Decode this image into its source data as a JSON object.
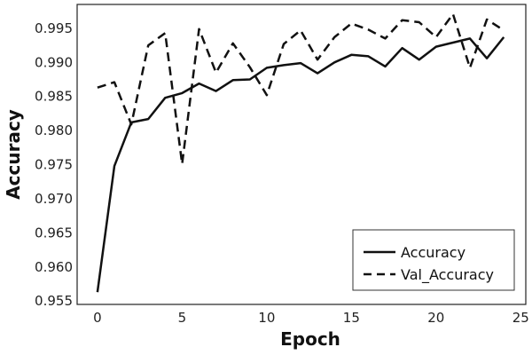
{
  "chart_data": {
    "type": "line",
    "xlabel": "Epoch",
    "ylabel": "Accuracy",
    "xlim": [
      -1.2,
      25.3
    ],
    "ylim": [
      0.9545,
      0.9985
    ],
    "xticks": [
      0,
      5,
      10,
      15,
      20,
      25
    ],
    "yticks": [
      0.955,
      0.96,
      0.965,
      0.97,
      0.975,
      0.98,
      0.985,
      0.99,
      0.995
    ],
    "ytick_labels": [
      "0.955",
      "0.960",
      "0.965",
      "0.970",
      "0.975",
      "0.980",
      "0.985",
      "0.990",
      "0.995"
    ],
    "grid": false,
    "legend_position": "bottom-right",
    "x": [
      0,
      1,
      2,
      3,
      4,
      5,
      6,
      7,
      8,
      9,
      10,
      11,
      12,
      13,
      14,
      15,
      16,
      17,
      18,
      19,
      20,
      21,
      22,
      23,
      24
    ],
    "series": [
      {
        "name": "Accuracy",
        "style": "solid",
        "color": "#111111",
        "values": [
          0.9563,
          0.9748,
          0.9812,
          0.9817,
          0.9848,
          0.9855,
          0.9869,
          0.9858,
          0.9874,
          0.9875,
          0.9892,
          0.9896,
          0.9899,
          0.9884,
          0.99,
          0.9911,
          0.9909,
          0.9894,
          0.9921,
          0.9904,
          0.9923,
          0.9929,
          0.9935,
          0.9906,
          0.9937
        ]
      },
      {
        "name": "Val_Accuracy",
        "style": "dashed",
        "color": "#111111",
        "values": [
          0.9863,
          0.9871,
          0.9809,
          0.9925,
          0.9943,
          0.9751,
          0.9949,
          0.9885,
          0.9928,
          0.9893,
          0.9852,
          0.9927,
          0.9947,
          0.9904,
          0.9937,
          0.9957,
          0.9948,
          0.9935,
          0.9962,
          0.9959,
          0.9937,
          0.9971,
          0.9892,
          0.9963,
          0.9947
        ]
      }
    ]
  }
}
